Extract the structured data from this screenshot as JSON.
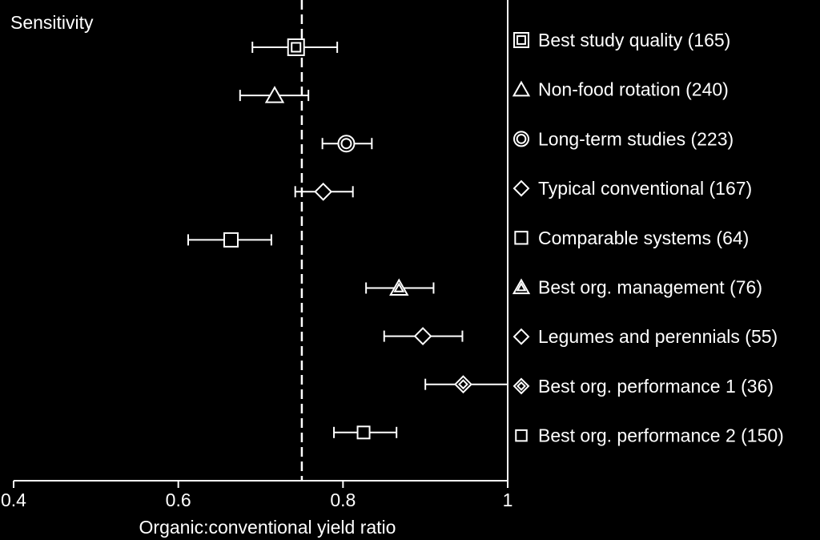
{
  "chart_data": {
    "type": "forest",
    "title": "Sensitivity",
    "xlabel": "Organic:conventional yield ratio",
    "xlim": [
      0.4,
      1.0
    ],
    "xticks": [
      {
        "value": 0.4,
        "label": "0.4"
      },
      {
        "value": 0.6,
        "label": "0.6"
      },
      {
        "value": 0.8,
        "label": "0.8"
      },
      {
        "value": 1.0,
        "label": "1"
      }
    ],
    "reference_line": 0.75,
    "rows": [
      {
        "label": "Best study quality (165)",
        "marker": "square-double",
        "value": 0.743,
        "lo": 0.69,
        "hi": 0.793
      },
      {
        "label": "Non-food rotation (240)",
        "marker": "triangle",
        "value": 0.717,
        "lo": 0.675,
        "hi": 0.758
      },
      {
        "label": "Long-term studies (223)",
        "marker": "circle-double",
        "value": 0.804,
        "lo": 0.775,
        "hi": 0.835
      },
      {
        "label": "Typical conventional (167)",
        "marker": "diamond",
        "value": 0.776,
        "lo": 0.742,
        "hi": 0.812
      },
      {
        "label": "Comparable systems (64)",
        "marker": "square",
        "value": 0.664,
        "lo": 0.612,
        "hi": 0.713
      },
      {
        "label": "Best org. management (76)",
        "marker": "triangle-double",
        "value": 0.868,
        "lo": 0.828,
        "hi": 0.91
      },
      {
        "label": "Legumes and perennials (55)",
        "marker": "diamond-plain",
        "value": 0.897,
        "lo": 0.85,
        "hi": 0.945
      },
      {
        "label": "Best org. performance 1 (36)",
        "marker": "diamond-double",
        "value": 0.946,
        "lo": 0.9,
        "hi": 1.0
      },
      {
        "label": "Best org. performance 2 (150)",
        "marker": "square-small",
        "value": 0.825,
        "lo": 0.789,
        "hi": 0.865
      }
    ]
  }
}
